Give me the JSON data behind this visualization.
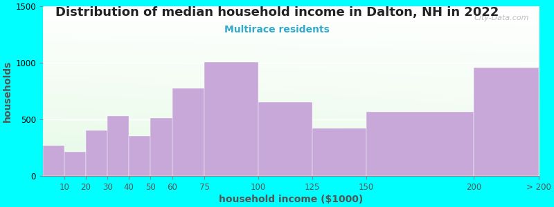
{
  "title": "Distribution of median household income in Dalton, NH in 2022",
  "subtitle": "Multirace residents",
  "xlabel": "household income ($1000)",
  "ylabel": "households",
  "background_outer": "#00FFFF",
  "bar_color": "#C8A8D8",
  "bar_edge_color": "#B090C8",
  "edges": [
    0,
    10,
    20,
    30,
    40,
    50,
    60,
    75,
    100,
    125,
    150,
    200,
    230
  ],
  "tick_positions": [
    10,
    20,
    30,
    40,
    50,
    60,
    75,
    100,
    125,
    150,
    200,
    230
  ],
  "tick_labels": [
    "10",
    "20",
    "30",
    "40",
    "50",
    "60",
    "75",
    "100",
    "125",
    "150",
    "200",
    "> 200"
  ],
  "values": [
    270,
    215,
    400,
    530,
    355,
    515,
    775,
    1005,
    650,
    420,
    565,
    955
  ],
  "ylim": [
    0,
    1500
  ],
  "yticks": [
    0,
    500,
    1000,
    1500
  ],
  "watermark": "City-Data.com",
  "title_fontsize": 13,
  "subtitle_fontsize": 10,
  "axis_label_fontsize": 10,
  "tick_fontsize": 8.5,
  "gradient_colors": [
    "#e8f5e0",
    "#f8fff8",
    "#ffffff"
  ],
  "watermark_color": "#b0b0b0"
}
